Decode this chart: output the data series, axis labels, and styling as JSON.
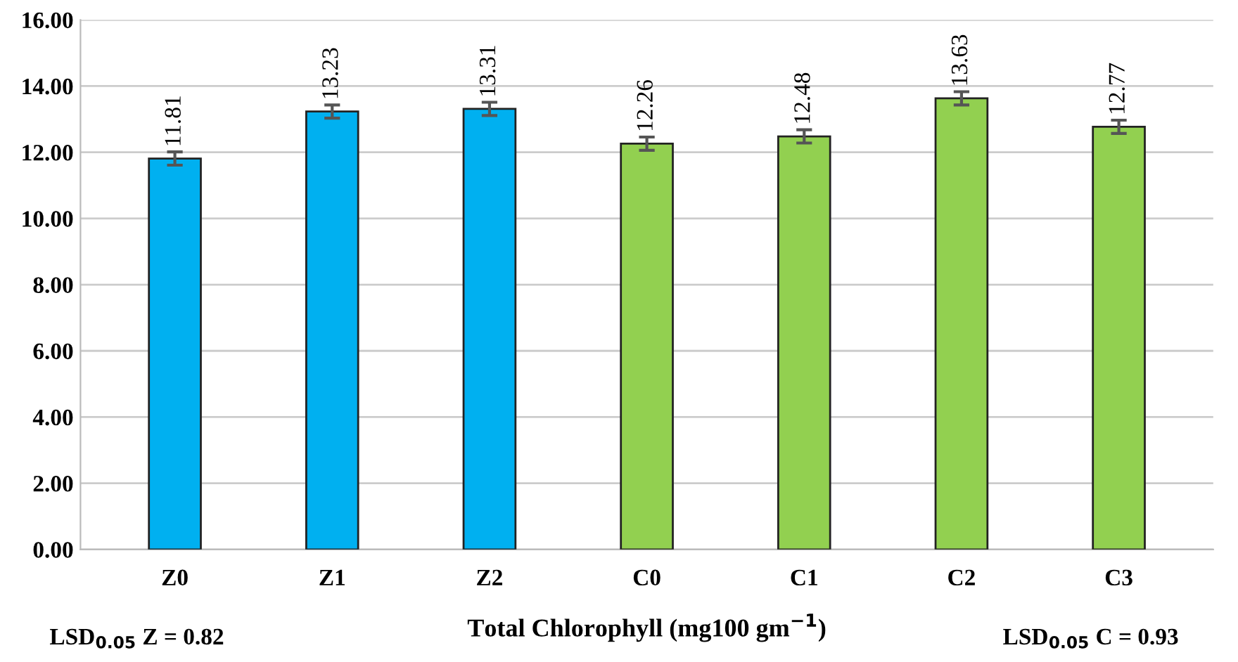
{
  "chart_data": {
    "type": "bar",
    "xlabel": "Total Chlorophyll (mg100 gm$^{−1}$)",
    "categories": [
      "Z0",
      "Z1",
      "Z2",
      "C0",
      "C1",
      "C2",
      "C3"
    ],
    "values": [
      11.81,
      13.23,
      13.31,
      12.26,
      12.48,
      13.63,
      12.77
    ],
    "colors": [
      "#00b0f0",
      "#00b0f0",
      "#00b0f0",
      "#92d050",
      "#92d050",
      "#92d050",
      "#92d050"
    ],
    "errors": [
      0.2,
      0.2,
      0.2,
      0.2,
      0.2,
      0.2,
      0.2
    ],
    "data_labels": true,
    "ylim": [
      0,
      16
    ],
    "yticks": [
      {
        "value": 0,
        "label": "0.00"
      },
      {
        "value": 2,
        "label": "2.00"
      },
      {
        "value": 4,
        "label": "4.00"
      },
      {
        "value": 6,
        "label": "6.00"
      },
      {
        "value": 8,
        "label": "8.00"
      },
      {
        "value": 10,
        "label": "10.00"
      },
      {
        "value": 12,
        "label": "12.00"
      },
      {
        "value": 14,
        "label": "14.00"
      },
      {
        "value": 16,
        "label": "16.00"
      }
    ],
    "grid": "y",
    "annotations": [
      "LSD$_{0.05}$ Z = 0.82",
      "LSD$_{0.05}$ C = 0.93"
    ]
  }
}
